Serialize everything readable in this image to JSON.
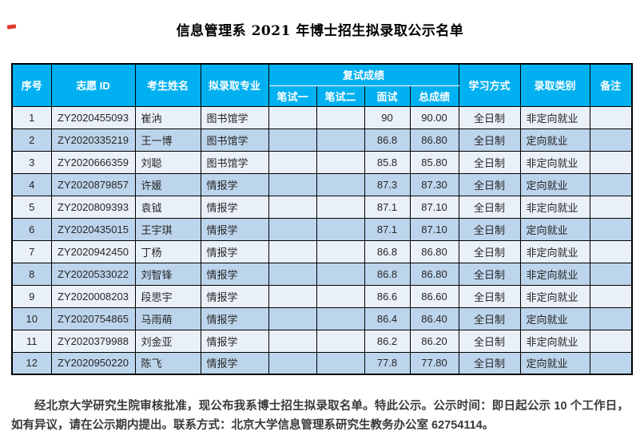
{
  "page": {
    "title": "信息管理系 2021 年博士招生拟录取公示名单"
  },
  "colors": {
    "header_bg": "#00b0f0",
    "header_text": "#ffffff",
    "row_light": "#e9f0f8",
    "row_alt": "#bdd5ec",
    "grid_border": "#000000",
    "red_mark": "#e2382b"
  },
  "table": {
    "headers": {
      "seq": "序号",
      "id": "志愿 ID",
      "name": "考生姓名",
      "major": "拟录取专业",
      "retest_group": "复试成绩",
      "written1": "笔试一",
      "written2": "笔试二",
      "interview": "面试",
      "total": "总成绩",
      "study_mode": "学习方式",
      "admission_type": "录取类别",
      "remarks": "备注"
    },
    "column_keys": [
      "seq",
      "id",
      "name",
      "major",
      "written1",
      "written2",
      "interview",
      "total",
      "study_mode",
      "admission_type",
      "remarks"
    ],
    "rows": [
      {
        "seq": "1",
        "id": "ZY2020455093",
        "name": "崔汭",
        "major": "图书馆学",
        "written1": "",
        "written2": "",
        "interview": "90",
        "total": "90.00",
        "study_mode": "全日制",
        "admission_type": "非定向就业",
        "remarks": ""
      },
      {
        "seq": "2",
        "id": "ZY2020335219",
        "name": "王一博",
        "major": "图书馆学",
        "written1": "",
        "written2": "",
        "interview": "86.8",
        "total": "86.80",
        "study_mode": "全日制",
        "admission_type": "定向就业",
        "remarks": ""
      },
      {
        "seq": "3",
        "id": "ZY2020666359",
        "name": "刘聪",
        "major": "图书馆学",
        "written1": "",
        "written2": "",
        "interview": "85.8",
        "total": "85.80",
        "study_mode": "全日制",
        "admission_type": "非定向就业",
        "remarks": ""
      },
      {
        "seq": "4",
        "id": "ZY2020879857",
        "name": "许媛",
        "major": "情报学",
        "written1": "",
        "written2": "",
        "interview": "87.3",
        "total": "87.30",
        "study_mode": "全日制",
        "admission_type": "定向就业",
        "remarks": ""
      },
      {
        "seq": "5",
        "id": "ZY2020809393",
        "name": "袁钺",
        "major": "情报学",
        "written1": "",
        "written2": "",
        "interview": "87.1",
        "total": "87.10",
        "study_mode": "全日制",
        "admission_type": "非定向就业",
        "remarks": ""
      },
      {
        "seq": "6",
        "id": "ZY2020435015",
        "name": "王宇琪",
        "major": "情报学",
        "written1": "",
        "written2": "",
        "interview": "87.1",
        "total": "87.10",
        "study_mode": "全日制",
        "admission_type": "定向就业",
        "remarks": ""
      },
      {
        "seq": "7",
        "id": "ZY2020942450",
        "name": "丁杨",
        "major": "情报学",
        "written1": "",
        "written2": "",
        "interview": "86.8",
        "total": "86.80",
        "study_mode": "全日制",
        "admission_type": "非定向就业",
        "remarks": ""
      },
      {
        "seq": "8",
        "id": "ZY2020533022",
        "name": "刘智锋",
        "major": "情报学",
        "written1": "",
        "written2": "",
        "interview": "86.8",
        "total": "86.80",
        "study_mode": "全日制",
        "admission_type": "非定向就业",
        "remarks": ""
      },
      {
        "seq": "9",
        "id": "ZY2020008203",
        "name": "段思宇",
        "major": "情报学",
        "written1": "",
        "written2": "",
        "interview": "86.6",
        "total": "86.60",
        "study_mode": "全日制",
        "admission_type": "非定向就业",
        "remarks": ""
      },
      {
        "seq": "10",
        "id": "ZY2020754865",
        "name": "马雨萌",
        "major": "情报学",
        "written1": "",
        "written2": "",
        "interview": "86.4",
        "total": "86.40",
        "study_mode": "全日制",
        "admission_type": "定向就业",
        "remarks": ""
      },
      {
        "seq": "11",
        "id": "ZY2020379988",
        "name": "刘金亚",
        "major": "情报学",
        "written1": "",
        "written2": "",
        "interview": "86.2",
        "total": "86.20",
        "study_mode": "全日制",
        "admission_type": "非定向就业",
        "remarks": ""
      },
      {
        "seq": "12",
        "id": "ZY2020950220",
        "name": "陈飞",
        "major": "情报学",
        "written1": "",
        "written2": "",
        "interview": "77.8",
        "total": "77.80",
        "study_mode": "全日制",
        "admission_type": "定向就业",
        "remarks": ""
      }
    ]
  },
  "footer": {
    "notice": "经北京大学研究生院审核批准，现公布我系博士招生拟录取名单。特此公示。公示时间：即日起公示 10 个工作日，如有异议，请在公示期内提出。联系方式：北京大学信息管理系研究生教务办公室 62754114。"
  }
}
